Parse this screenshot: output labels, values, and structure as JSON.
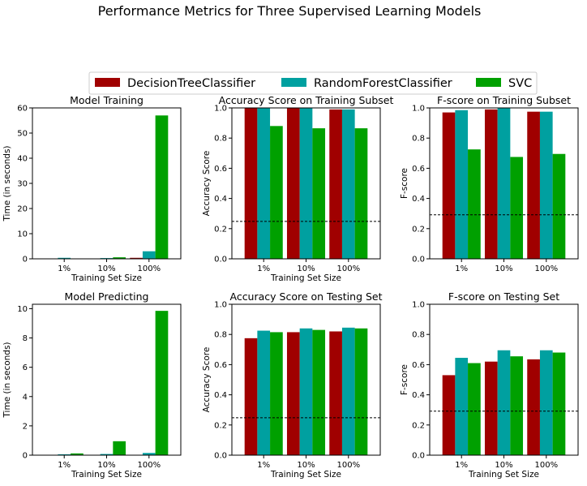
{
  "title": "Performance Metrics for Three Supervised Learning Models",
  "legend": {
    "placement": "top-center",
    "items": [
      {
        "name": "DecisionTreeClassifier",
        "color": "#A00000"
      },
      {
        "name": "RandomForestClassifier",
        "color": "#00A0A0"
      },
      {
        "name": "SVC",
        "color": "#00A000"
      }
    ]
  },
  "chart_data": [
    {
      "type": "bar",
      "title": "Model Training",
      "xlabel": "Training Set Size",
      "ylabel": "Time (in seconds)",
      "categories": [
        "1%",
        "10%",
        "100%"
      ],
      "ylim": [
        0,
        60
      ],
      "yticks": [
        0,
        10,
        20,
        30,
        40,
        50,
        60
      ],
      "series": [
        {
          "name": "DecisionTreeClassifier",
          "values": [
            0.01,
            0.05,
            0.4
          ]
        },
        {
          "name": "RandomForestClassifier",
          "values": [
            0.4,
            0.3,
            3.0
          ]
        },
        {
          "name": "SVC",
          "values": [
            0.02,
            0.6,
            57.0
          ]
        }
      ]
    },
    {
      "type": "bar",
      "title": "Accuracy Score on Training Subset",
      "xlabel": "Training Set Size",
      "ylabel": "Accuracy Score",
      "categories": [
        "1%",
        "10%",
        "100%"
      ],
      "ylim": [
        0,
        1
      ],
      "yticks": [
        0.0,
        0.2,
        0.4,
        0.6,
        0.8,
        1.0
      ],
      "baseline": 0.2478,
      "series": [
        {
          "name": "DecisionTreeClassifier",
          "values": [
            1.0,
            1.0,
            0.99
          ]
        },
        {
          "name": "RandomForestClassifier",
          "values": [
            1.0,
            1.0,
            0.99
          ]
        },
        {
          "name": "SVC",
          "values": [
            0.88,
            0.865,
            0.865
          ]
        }
      ]
    },
    {
      "type": "bar",
      "title": "F-score on Training Subset",
      "xlabel": "",
      "ylabel": "F-score",
      "categories": [
        "1%",
        "10%",
        "100%"
      ],
      "ylim": [
        0,
        1
      ],
      "yticks": [
        0.0,
        0.2,
        0.4,
        0.6,
        0.8,
        1.0
      ],
      "baseline": 0.2917,
      "series": [
        {
          "name": "DecisionTreeClassifier",
          "values": [
            0.97,
            0.99,
            0.975
          ]
        },
        {
          "name": "RandomForestClassifier",
          "values": [
            0.985,
            1.0,
            0.975
          ]
        },
        {
          "name": "SVC",
          "values": [
            0.725,
            0.675,
            0.695
          ]
        }
      ]
    },
    {
      "type": "bar",
      "title": "Model Predicting",
      "xlabel": "Training Set Size",
      "ylabel": "Time (in seconds)",
      "categories": [
        "1%",
        "10%",
        "100%"
      ],
      "ylim": [
        0,
        10.3
      ],
      "yticks": [
        0,
        2,
        4,
        6,
        8,
        10
      ],
      "series": [
        {
          "name": "DecisionTreeClassifier",
          "values": [
            0.005,
            0.01,
            0.02
          ]
        },
        {
          "name": "RandomForestClassifier",
          "values": [
            0.06,
            0.08,
            0.15
          ]
        },
        {
          "name": "SVC",
          "values": [
            0.12,
            0.95,
            9.85
          ]
        }
      ]
    },
    {
      "type": "bar",
      "title": "Accuracy Score on Testing Set",
      "xlabel": "Training Set Size",
      "ylabel": "Accuracy Score",
      "categories": [
        "1%",
        "10%",
        "100%"
      ],
      "ylim": [
        0,
        1
      ],
      "yticks": [
        0.0,
        0.2,
        0.4,
        0.6,
        0.8,
        1.0
      ],
      "baseline": 0.2478,
      "series": [
        {
          "name": "DecisionTreeClassifier",
          "values": [
            0.775,
            0.815,
            0.82
          ]
        },
        {
          "name": "RandomForestClassifier",
          "values": [
            0.825,
            0.84,
            0.845
          ]
        },
        {
          "name": "SVC",
          "values": [
            0.815,
            0.83,
            0.84
          ]
        }
      ]
    },
    {
      "type": "bar",
      "title": "F-score on Testing Set",
      "xlabel": "Training Set Size",
      "ylabel": "F-score",
      "categories": [
        "1%",
        "10%",
        "100%"
      ],
      "ylim": [
        0,
        1
      ],
      "yticks": [
        0.0,
        0.2,
        0.4,
        0.6,
        0.8,
        1.0
      ],
      "baseline": 0.2917,
      "series": [
        {
          "name": "DecisionTreeClassifier",
          "values": [
            0.53,
            0.62,
            0.635
          ]
        },
        {
          "name": "RandomForestClassifier",
          "values": [
            0.645,
            0.695,
            0.695
          ]
        },
        {
          "name": "SVC",
          "values": [
            0.61,
            0.655,
            0.68
          ]
        }
      ]
    }
  ]
}
